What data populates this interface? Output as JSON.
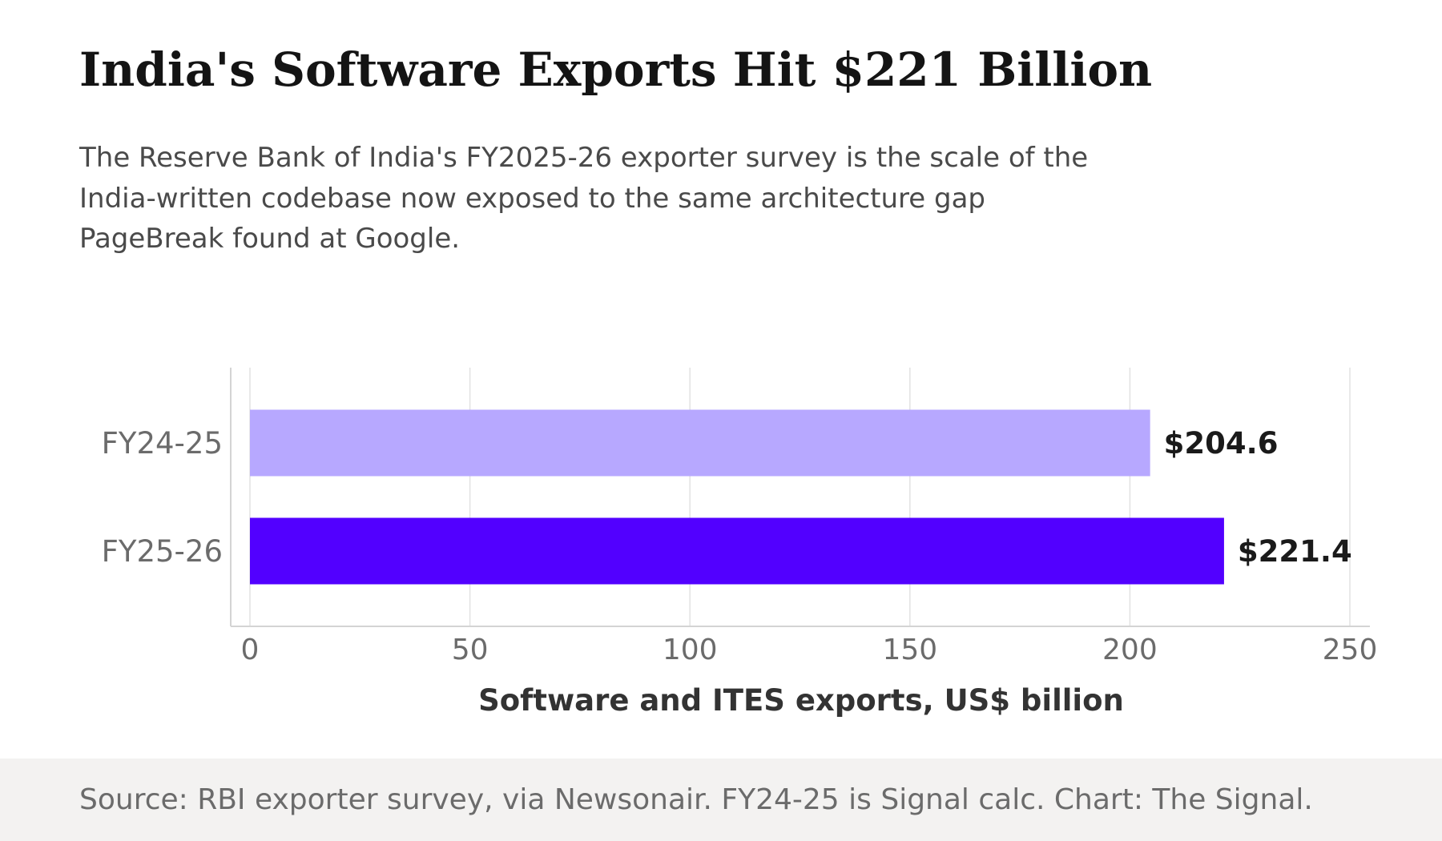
{
  "title": "India's Software Exports Hit $221 Billion",
  "subtitle": "The Reserve Bank of India's FY2025-26 exporter survey is the scale of the India-written codebase now exposed to the same architecture gap PageBreak found at Google.",
  "source": "Source: RBI exporter survey, via Newsonair. FY24-25 is Signal calc. Chart: The Signal.",
  "chart_data": {
    "type": "bar",
    "orientation": "horizontal",
    "categories": [
      "FY24-25",
      "FY25-26"
    ],
    "values": [
      204.6,
      221.4
    ],
    "value_labels": [
      "$204.6",
      "$221.4"
    ],
    "bar_colors": [
      "#b7a8ff",
      "#5200ff"
    ],
    "xlabel": "Software and ITES exports, US$ billion",
    "ylabel": "",
    "xlim": [
      0,
      250
    ],
    "xticks": [
      0,
      50,
      100,
      150,
      200,
      250
    ],
    "xtick_labels": [
      "0",
      "50",
      "100",
      "150",
      "200",
      "250"
    ],
    "grid": "vertical"
  }
}
